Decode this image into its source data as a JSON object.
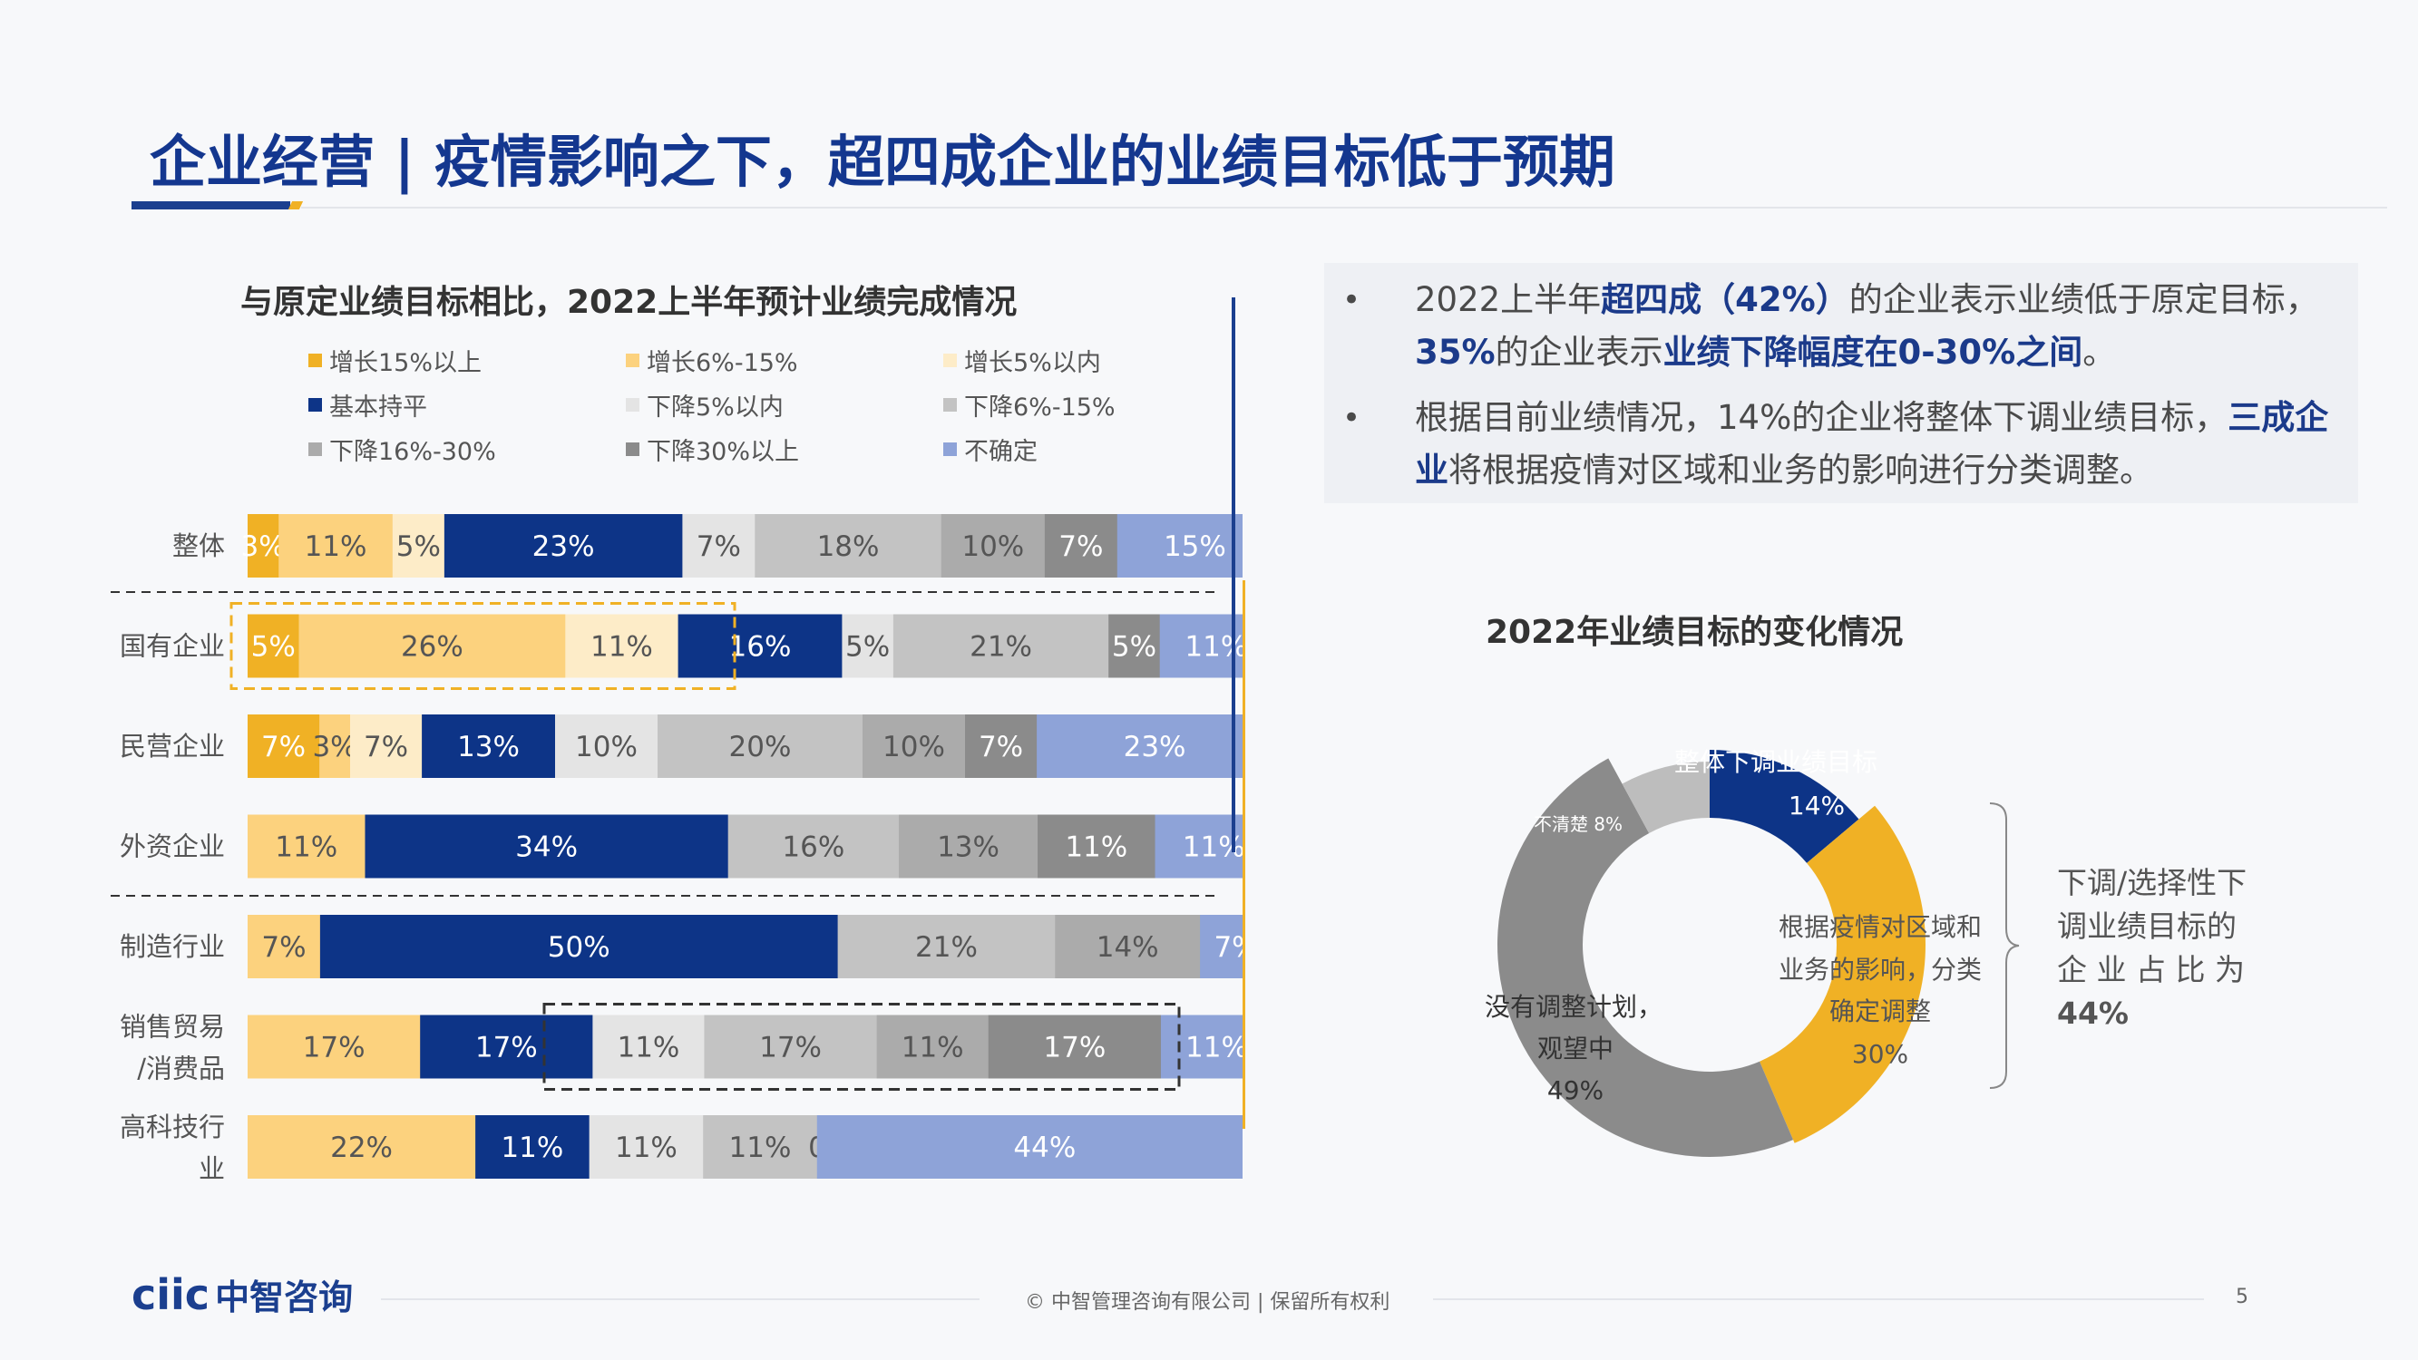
{
  "title": "企业经营 | 疫情影响之下，超四成企业的业绩目标低于预期",
  "bar_chart_title": "与原定业绩目标相比，2022上半年预计业绩完成情况",
  "donut_title": "2022年业绩目标的变化情况",
  "bullets": [
    {
      "parts": [
        {
          "t": "2022上半年",
          "b": false
        },
        {
          "t": "超四成（42%）",
          "b": true
        },
        {
          "t": "的企业表示业绩低于原定目标，",
          "b": false
        },
        {
          "t": "35%",
          "b": true
        },
        {
          "t": "的企业表示",
          "b": false
        },
        {
          "t": "业绩下降幅度在0-30%之间",
          "b": true
        },
        {
          "t": "。",
          "b": false
        }
      ]
    },
    {
      "parts": [
        {
          "t": "根据目前业绩情况，14%的企业将整体下调业绩目标，",
          "b": false
        },
        {
          "t": "三成企业",
          "b": true
        },
        {
          "t": "将根据疫情对区域和业务的影响进行分类调整。",
          "b": false
        }
      ]
    }
  ],
  "bracket_note": {
    "lines": [
      "下调/选择性下",
      "调业绩目标的",
      "企 业 占 比 为"
    ],
    "value": "44%"
  },
  "footer": {
    "logo": "ciic",
    "logo_cn": "中智咨询",
    "copyright": "© 中智管理咨询有限公司 | 保留所有权利",
    "page": "5"
  },
  "colors": {
    "title_blue": "#14378f",
    "gold": "#f0b125"
  },
  "chart_data": [
    {
      "type": "bar",
      "stacked": "100%",
      "orientation": "horizontal",
      "title": "与原定业绩目标相比，2022上半年预计业绩完成情况",
      "categories": [
        "整体",
        "国有企业",
        "民营企业",
        "外资企业",
        "制造行业",
        "销售贸易/消费品",
        "高科技行业"
      ],
      "category_lines": [
        [
          "整体"
        ],
        [
          "国有企业"
        ],
        [
          "民营企业"
        ],
        [
          "外资企业"
        ],
        [
          "制造行业"
        ],
        [
          "销售贸易",
          "/消费品"
        ],
        [
          "高科技行",
          "业"
        ]
      ],
      "legend_position": "top",
      "series": [
        {
          "name": "增长15%以上",
          "color": "#f0b125",
          "text": "#ffffff",
          "values": [
            3,
            5,
            7,
            0,
            0,
            0,
            0
          ]
        },
        {
          "name": "增长6%-15%",
          "color": "#fcd27e",
          "text": "#555555",
          "values": [
            11,
            26,
            3,
            11,
            7,
            17,
            22
          ]
        },
        {
          "name": "增长5%以内",
          "color": "#fdecc8",
          "text": "#555555",
          "values": [
            5,
            11,
            7,
            0,
            0,
            0,
            0
          ]
        },
        {
          "name": "基本持平",
          "color": "#0d3487",
          "text": "#ffffff",
          "values": [
            23,
            16,
            13,
            34,
            50,
            17,
            11
          ]
        },
        {
          "name": "下降5%以内",
          "color": "#e4e4e4",
          "text": "#555555",
          "values": [
            7,
            5,
            10,
            0,
            0,
            11,
            11
          ]
        },
        {
          "name": "下降6%-15%",
          "color": "#c3c3c3",
          "text": "#555555",
          "values": [
            18,
            21,
            20,
            16,
            21,
            17,
            11
          ]
        },
        {
          "name": "下降16%-30%",
          "color": "#ababab",
          "text": "#555555",
          "values": [
            10,
            0,
            10,
            13,
            14,
            11,
            0
          ]
        },
        {
          "name": "下降30%以上",
          "color": "#8b8b8b",
          "text": "#ffffff",
          "values": [
            7,
            5,
            7,
            11,
            0,
            17,
            0
          ]
        },
        {
          "name": "不确定",
          "color": "#8ea3d8",
          "text": "#ffffff",
          "values": [
            15,
            11,
            23,
            11,
            7,
            11,
            44
          ]
        }
      ],
      "bar_labels": [
        [
          "3%",
          "11%",
          "5%",
          "23%",
          "7%",
          "18%",
          "10%",
          "7%",
          "15%"
        ],
        [
          "5%",
          "26%",
          "11%",
          "16%",
          "5%",
          "21%",
          "",
          "5%",
          "11%"
        ],
        [
          "7%",
          "3%",
          "7%",
          "13%",
          "10%",
          "20%",
          "10%",
          "7%",
          "23%"
        ],
        [
          "",
          "11%",
          "",
          "34%",
          "",
          "16%",
          "13%",
          "11%",
          "11%"
        ],
        [
          "",
          "7%",
          "",
          "50%",
          "",
          "21%",
          "14%",
          "",
          "7%"
        ],
        [
          "",
          "17%",
          "",
          "17%",
          "11%",
          "17%",
          "11%",
          "17%",
          "11%"
        ],
        [
          "",
          "22%",
          "",
          "11%",
          "11%",
          "11%",
          "0%",
          "",
          "44%"
        ]
      ],
      "annotations": [
        "国有企业：增长部分高亮框（金色虚线）",
        "销售贸易/消费品：下降部分高亮框（黑色虚线）"
      ]
    },
    {
      "type": "pie",
      "donut": true,
      "title": "2022年业绩目标的变化情况",
      "slices": [
        {
          "label": "整体下调业绩目标",
          "value": 14,
          "value_label": "14%",
          "color": "#0d3487"
        },
        {
          "label": "根据疫情对区域和业务的影响，分类确定调整",
          "value": 30,
          "value_label": "30%",
          "color": "#f0b125"
        },
        {
          "label": "没有调整计划，观望中",
          "value": 49,
          "value_label": "49%",
          "color": "#8b8b8b"
        },
        {
          "label": "不清楚",
          "value": 8,
          "value_label": "8%",
          "color": "#bdbdbd"
        }
      ]
    }
  ]
}
